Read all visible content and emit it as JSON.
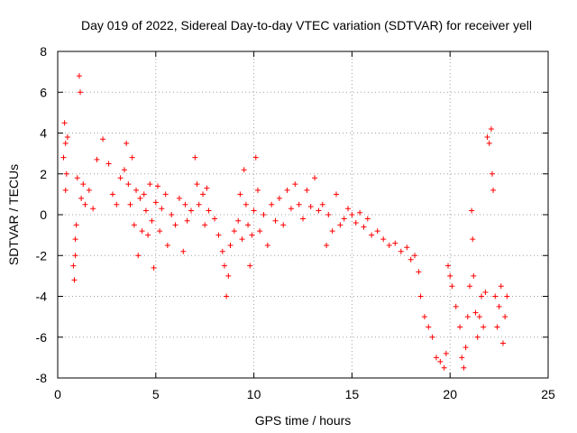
{
  "chart_data": {
    "type": "scatter",
    "title": "Day 019 of 2022, Sidereal Day-to-day VTEC variation (SDTVAR) for receiver yell",
    "xlabel": "GPS time / hours",
    "ylabel": "SDTVAR / TECUs",
    "xlim": [
      0,
      25
    ],
    "ylim": [
      -8,
      8
    ],
    "xticks": [
      0,
      5,
      10,
      15,
      20,
      25
    ],
    "yticks": [
      -8,
      -6,
      -4,
      -2,
      0,
      2,
      4,
      6,
      8
    ],
    "grid": true,
    "marker": "+",
    "series_color": "#ff0000",
    "series": [
      {
        "name": "SDTVAR",
        "points": [
          [
            0.3,
            2.8
          ],
          [
            0.35,
            4.5
          ],
          [
            0.4,
            3.5
          ],
          [
            0.45,
            2.0
          ],
          [
            0.4,
            1.2
          ],
          [
            0.5,
            3.8
          ],
          [
            0.8,
            -2.5
          ],
          [
            0.85,
            -3.2
          ],
          [
            0.9,
            -2.0
          ],
          [
            0.95,
            -0.5
          ],
          [
            0.9,
            -1.2
          ],
          [
            1.1,
            6.8
          ],
          [
            1.15,
            6.0
          ],
          [
            1.0,
            1.8
          ],
          [
            1.2,
            0.8
          ],
          [
            1.3,
            1.5
          ],
          [
            1.4,
            0.5
          ],
          [
            1.6,
            1.2
          ],
          [
            1.8,
            0.3
          ],
          [
            2.0,
            2.7
          ],
          [
            2.3,
            3.7
          ],
          [
            2.6,
            2.5
          ],
          [
            2.8,
            1.0
          ],
          [
            3.0,
            0.5
          ],
          [
            3.2,
            1.8
          ],
          [
            3.4,
            2.2
          ],
          [
            3.5,
            3.5
          ],
          [
            3.6,
            1.5
          ],
          [
            3.7,
            0.5
          ],
          [
            3.8,
            2.8
          ],
          [
            3.9,
            -0.5
          ],
          [
            4.0,
            1.2
          ],
          [
            4.1,
            -2.0
          ],
          [
            4.2,
            0.8
          ],
          [
            4.3,
            -0.8
          ],
          [
            4.4,
            1.0
          ],
          [
            4.5,
            0.2
          ],
          [
            4.6,
            -1.0
          ],
          [
            4.7,
            1.5
          ],
          [
            4.8,
            -0.3
          ],
          [
            4.9,
            -2.6
          ],
          [
            5.0,
            0.6
          ],
          [
            5.1,
            1.4
          ],
          [
            5.2,
            -0.8
          ],
          [
            5.3,
            0.3
          ],
          [
            5.5,
            1.0
          ],
          [
            5.6,
            -1.5
          ],
          [
            5.8,
            0.0
          ],
          [
            6.0,
            -0.5
          ],
          [
            6.2,
            0.8
          ],
          [
            6.4,
            -1.8
          ],
          [
            6.5,
            0.5
          ],
          [
            6.6,
            -0.3
          ],
          [
            6.8,
            0.2
          ],
          [
            7.0,
            2.8
          ],
          [
            7.1,
            1.5
          ],
          [
            7.2,
            0.5
          ],
          [
            7.4,
            1.0
          ],
          [
            7.5,
            -0.5
          ],
          [
            7.6,
            1.3
          ],
          [
            7.7,
            0.2
          ],
          [
            8.0,
            -0.2
          ],
          [
            8.2,
            -1.0
          ],
          [
            8.4,
            -1.8
          ],
          [
            8.5,
            -2.5
          ],
          [
            8.6,
            -4.0
          ],
          [
            8.7,
            -3.0
          ],
          [
            8.8,
            -1.5
          ],
          [
            9.0,
            -0.8
          ],
          [
            9.2,
            -0.3
          ],
          [
            9.3,
            1.0
          ],
          [
            9.4,
            -1.2
          ],
          [
            9.5,
            2.2
          ],
          [
            9.6,
            0.5
          ],
          [
            9.7,
            -0.5
          ],
          [
            9.8,
            -2.5
          ],
          [
            9.9,
            -1.0
          ],
          [
            10.0,
            0.2
          ],
          [
            10.1,
            2.8
          ],
          [
            10.2,
            1.2
          ],
          [
            10.3,
            -0.8
          ],
          [
            10.5,
            0.0
          ],
          [
            10.7,
            -1.5
          ],
          [
            10.9,
            0.5
          ],
          [
            11.1,
            -0.3
          ],
          [
            11.3,
            0.8
          ],
          [
            11.5,
            -0.5
          ],
          [
            11.7,
            1.2
          ],
          [
            11.9,
            0.3
          ],
          [
            12.1,
            1.5
          ],
          [
            12.3,
            0.5
          ],
          [
            12.5,
            -0.2
          ],
          [
            12.7,
            1.2
          ],
          [
            12.9,
            0.4
          ],
          [
            13.1,
            1.8
          ],
          [
            13.3,
            0.2
          ],
          [
            13.5,
            0.5
          ],
          [
            13.7,
            -1.5
          ],
          [
            13.8,
            0.0
          ],
          [
            14.0,
            -0.8
          ],
          [
            14.2,
            1.0
          ],
          [
            14.4,
            -0.5
          ],
          [
            14.6,
            -0.2
          ],
          [
            14.8,
            0.3
          ],
          [
            15.0,
            0.0
          ],
          [
            15.2,
            -0.4
          ],
          [
            15.4,
            0.1
          ],
          [
            15.6,
            -0.6
          ],
          [
            15.8,
            -0.2
          ],
          [
            16.0,
            -1.0
          ],
          [
            16.3,
            -0.8
          ],
          [
            16.6,
            -1.2
          ],
          [
            16.9,
            -1.5
          ],
          [
            17.2,
            -1.4
          ],
          [
            17.5,
            -1.8
          ],
          [
            17.8,
            -1.6
          ],
          [
            18.0,
            -2.2
          ],
          [
            18.2,
            -2.0
          ],
          [
            18.4,
            -2.8
          ],
          [
            18.5,
            -4.0
          ],
          [
            18.7,
            -5.0
          ],
          [
            18.9,
            -5.5
          ],
          [
            19.1,
            -6.0
          ],
          [
            19.3,
            -7.0
          ],
          [
            19.5,
            -7.2
          ],
          [
            19.7,
            -7.5
          ],
          [
            19.8,
            -6.8
          ],
          [
            19.9,
            -2.5
          ],
          [
            20.0,
            -3.0
          ],
          [
            20.1,
            -3.5
          ],
          [
            20.3,
            -4.5
          ],
          [
            20.5,
            -5.5
          ],
          [
            20.6,
            -7.0
          ],
          [
            20.7,
            -7.5
          ],
          [
            20.8,
            -6.5
          ],
          [
            20.9,
            -5.0
          ],
          [
            21.0,
            -3.5
          ],
          [
            21.1,
            0.2
          ],
          [
            21.15,
            -1.2
          ],
          [
            21.2,
            -3.0
          ],
          [
            21.3,
            -4.8
          ],
          [
            21.4,
            -6.0
          ],
          [
            21.5,
            -5.0
          ],
          [
            21.6,
            -4.0
          ],
          [
            21.7,
            -5.5
          ],
          [
            21.8,
            -3.8
          ],
          [
            21.9,
            3.8
          ],
          [
            22.0,
            3.5
          ],
          [
            22.1,
            4.2
          ],
          [
            22.15,
            2.0
          ],
          [
            22.2,
            1.2
          ],
          [
            22.3,
            -4.0
          ],
          [
            22.4,
            -5.5
          ],
          [
            22.5,
            -4.5
          ],
          [
            22.6,
            -3.5
          ],
          [
            22.7,
            -6.3
          ],
          [
            22.8,
            -5.0
          ],
          [
            22.9,
            -4.0
          ]
        ]
      }
    ]
  }
}
